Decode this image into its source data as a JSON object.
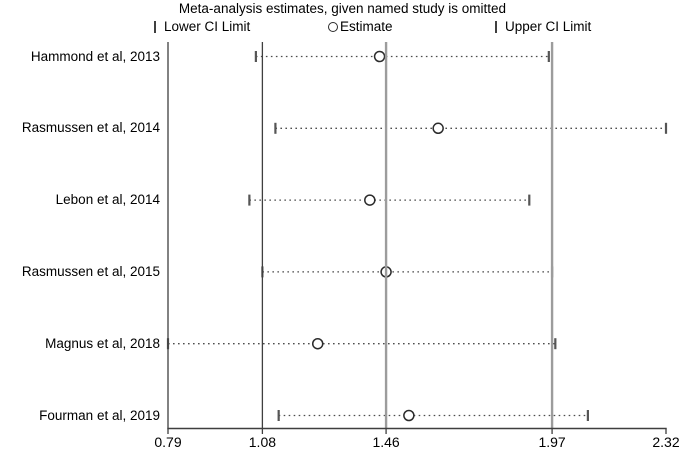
{
  "chart_data": {
    "type": "forest_leave_one_out",
    "title": "Meta-analysis estimates, given named study is omitted",
    "legend": {
      "lower": "Lower CI Limit",
      "estimate": "Estimate",
      "upper": "Upper CI Limit"
    },
    "xlim": [
      0.79,
      2.32
    ],
    "x_ticks": [
      {
        "v": 0.79,
        "label": "0.79"
      },
      {
        "v": 1.08,
        "label": "1.08"
      },
      {
        "v": 1.46,
        "label": "1.46"
      },
      {
        "v": 1.97,
        "label": "1.97"
      },
      {
        "v": 2.32,
        "label": "2.32"
      }
    ],
    "reference_lines": {
      "min_lower": 0.79,
      "overall_lower": 1.08,
      "overall_estimate": 1.46,
      "overall_upper": 1.97
    },
    "studies": [
      {
        "label": "Hammond et al, 2013",
        "lower": 1.06,
        "estimate": 1.44,
        "upper": 1.96
      },
      {
        "label": "Rasmussen et al, 2014",
        "lower": 1.12,
        "estimate": 1.62,
        "upper": 2.32
      },
      {
        "label": "Lebon et al, 2014",
        "lower": 1.04,
        "estimate": 1.41,
        "upper": 1.9
      },
      {
        "label": "Rasmussen et al, 2015",
        "lower": 1.08,
        "estimate": 1.46,
        "upper": 1.97
      },
      {
        "label": "Magnus et al, 2018",
        "lower": 0.79,
        "estimate": 1.25,
        "upper": 1.98
      },
      {
        "label": "Fourman et al, 2019",
        "lower": 1.13,
        "estimate": 1.53,
        "upper": 2.08
      }
    ],
    "colors": {
      "axis": "#3f3f3f",
      "reference_gray": "#9c9c9c",
      "dotted_line": "#4d4d4d",
      "ci_tick": "#555555",
      "marker_stroke": "#2b2b2b",
      "marker_fill": "#ffffff",
      "text": "#000000"
    }
  }
}
